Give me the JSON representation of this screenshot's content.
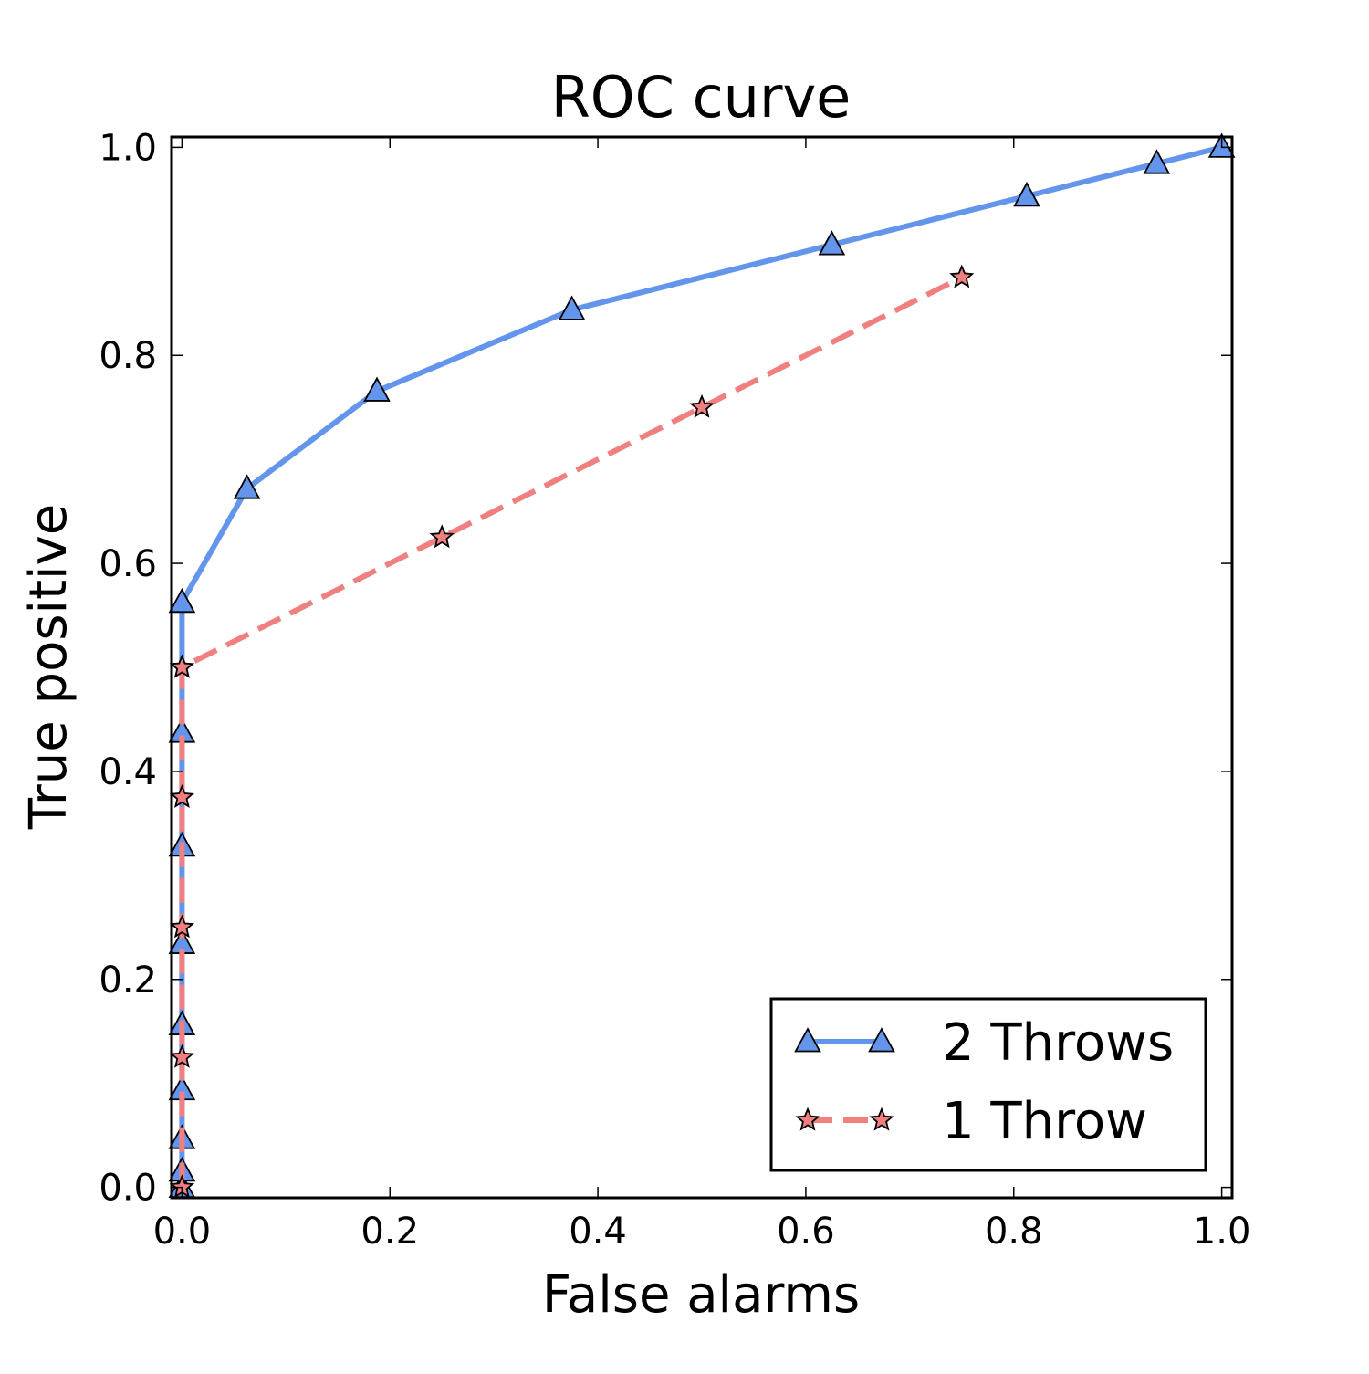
{
  "chart_data": {
    "type": "line",
    "title": "ROC curve",
    "xlabel": "False alarms",
    "ylabel": "True positive",
    "xlim": [
      -0.01,
      1.01
    ],
    "ylim": [
      -0.01,
      1.01
    ],
    "x_ticks": [
      0.0,
      0.2,
      0.4,
      0.6,
      0.8,
      1.0
    ],
    "y_ticks": [
      0.0,
      0.2,
      0.4,
      0.6,
      0.8,
      1.0
    ],
    "x_tick_labels": [
      "0.0",
      "0.2",
      "0.4",
      "0.6",
      "0.8",
      "1.0"
    ],
    "y_tick_labels": [
      "0.0",
      "0.2",
      "0.4",
      "0.6",
      "0.8",
      "1.0"
    ],
    "grid": false,
    "legend_position": "bottom-right",
    "series": [
      {
        "name": "2 Throws",
        "color": "#6495ED",
        "marker": "triangle",
        "line_style": "solid",
        "x": [
          0,
          0,
          0,
          0,
          0,
          0,
          0,
          0,
          0,
          0.0625,
          0.1875,
          0.375,
          0.625,
          0.8125,
          0.9375,
          1.0
        ],
        "y": [
          0,
          0.0156,
          0.0469,
          0.0938,
          0.1563,
          0.2344,
          0.3281,
          0.4375,
          0.5625,
          0.6719,
          0.7656,
          0.8438,
          0.9063,
          0.9531,
          0.9844,
          1.0
        ]
      },
      {
        "name": "1 Throw",
        "color": "#F08080",
        "marker": "star",
        "line_style": "dashed",
        "x": [
          0,
          0,
          0,
          0,
          0,
          0,
          0.25,
          0.5,
          0.75
        ],
        "y": [
          0,
          0.125,
          0.25,
          0.375,
          0.5,
          0.5,
          0.625,
          0.75,
          0.875
        ]
      }
    ]
  }
}
